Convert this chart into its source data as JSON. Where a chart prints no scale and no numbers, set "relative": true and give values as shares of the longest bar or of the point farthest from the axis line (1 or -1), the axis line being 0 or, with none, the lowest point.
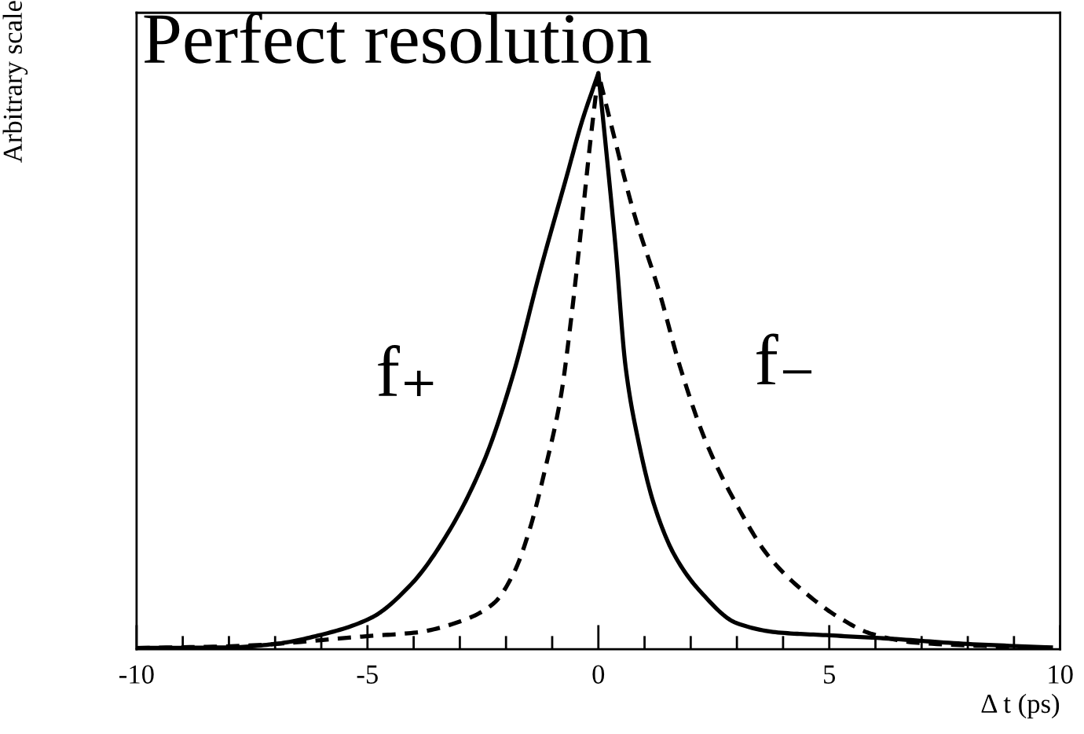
{
  "chart_data": {
    "type": "line",
    "title": "Perfect resolution",
    "xlabel": "Δ t (ps)",
    "ylabel": "Arbitrary scale",
    "relative": true,
    "xlim": [
      -10,
      10
    ],
    "xticks": [
      -10,
      {
        "value": -9,
        "label": null
      },
      {
        "value": -8,
        "label": null
      },
      {
        "value": -7,
        "label": null
      },
      {
        "value": -6,
        "label": null
      },
      -5,
      {
        "value": -4,
        "label": null
      },
      {
        "value": -3,
        "label": null
      },
      {
        "value": -2,
        "label": null
      },
      {
        "value": -1,
        "label": null
      },
      0,
      {
        "value": 1,
        "label": null
      },
      {
        "value": 2,
        "label": null
      },
      {
        "value": 3,
        "label": null
      },
      {
        "value": 4,
        "label": null
      },
      5,
      {
        "value": 6,
        "label": null
      },
      {
        "value": 7,
        "label": null
      },
      {
        "value": 8,
        "label": null
      },
      {
        "value": 9,
        "label": null
      },
      10
    ],
    "series": [
      {
        "name": "f₊",
        "color": "#000000",
        "line_style": "solid",
        "x": [
          -10,
          -8.0,
          -7.0,
          -6.0,
          -4.93,
          -4.05,
          -3.27,
          -2.48,
          -1.87,
          -1.25,
          -0.69,
          -0.36,
          0,
          0.14,
          0.37,
          0.59,
          0.87,
          1.21,
          1.65,
          2.21,
          3.0,
          3.89,
          5.0,
          6.35,
          8.0,
          9.8
        ],
        "values": [
          0.002,
          0.003,
          0.009,
          0.025,
          0.054,
          0.113,
          0.2,
          0.326,
          0.47,
          0.66,
          0.82,
          0.915,
          1.0,
          0.89,
          0.7,
          0.49,
          0.36,
          0.25,
          0.163,
          0.1,
          0.045,
          0.029,
          0.024,
          0.018,
          0.009,
          0.003
        ]
      },
      {
        "name": "f₋",
        "color": "#000000",
        "line_style": "dashed",
        "x": [
          -10,
          -7.96,
          -4.93,
          -3.94,
          -2.93,
          -2.26,
          -1.81,
          -1.48,
          -1.14,
          -0.81,
          -0.58,
          -0.36,
          -0.19,
          0,
          0.31,
          0.76,
          1.32,
          1.77,
          2.33,
          3.0,
          3.67,
          4.45,
          5.23,
          5.9,
          6.91,
          8.59,
          9.8
        ],
        "values": [
          0.002,
          0.005,
          0.023,
          0.029,
          0.05,
          0.08,
          0.136,
          0.21,
          0.317,
          0.44,
          0.58,
          0.74,
          0.87,
          1.0,
          0.9,
          0.76,
          0.62,
          0.49,
          0.36,
          0.25,
          0.163,
          0.1,
          0.054,
          0.027,
          0.011,
          0.005,
          0.002
        ]
      }
    ]
  }
}
